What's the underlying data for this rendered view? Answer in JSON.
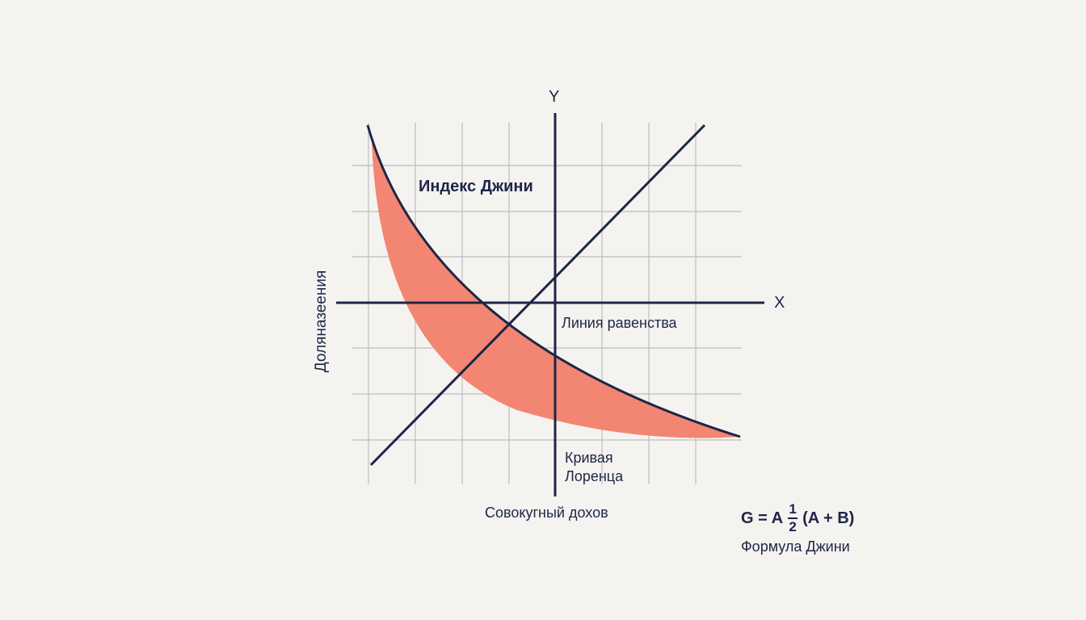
{
  "title": "Индекс Джини",
  "axes": {
    "x_letter": "X",
    "y_letter": "Y",
    "x_title": "Совокугный дохов",
    "y_title": "Доляназеения"
  },
  "lines": {
    "equality_label": "Линия равенства",
    "lorenz_label_line1": "Кривая",
    "lorenz_label_line2": "Лоренца"
  },
  "formula": {
    "lhs": "G = A",
    "frac_num": "1",
    "frac_den": "2",
    "rhs": "(A + B)",
    "caption": "Формула Джини"
  },
  "colors": {
    "ink": "#1e2547",
    "fill": "#f28672",
    "grid": "#bdbdbd",
    "background": "#f5f3f0"
  }
}
